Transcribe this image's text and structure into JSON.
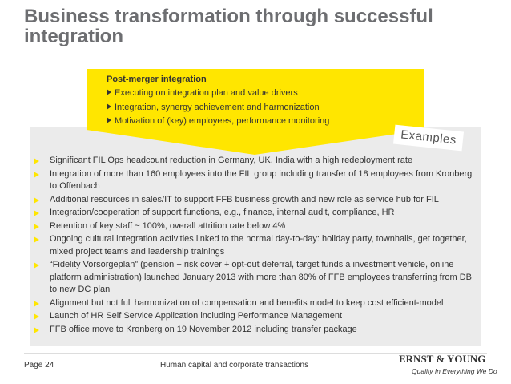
{
  "header": {
    "title": "Business transformation through successful integration"
  },
  "banner": {
    "heading": "Post-merger integration",
    "items": [
      "Executing on integration plan and value drivers",
      "Integration, synergy achievement and harmonization",
      "Motivation of (key) employees, performance monitoring"
    ]
  },
  "tag": "Examples",
  "bullets": [
    "Significant FIL Ops headcount reduction in Germany, UK, India with a high redeployment rate",
    "Integration of more than 160 employees into the FIL group including transfer of 18 employees from Kronberg to Offenbach",
    "Additional resources in sales/IT to support FFB business growth and new role as service hub for FIL",
    "Integration/cooperation of support functions, e.g., finance, internal audit, compliance, HR",
    "Retention of key staff ~ 100%, overall attrition rate below 4%",
    "Ongoing cultural integration activities linked to the normal day-to-day: holiday party, townhalls, get together, mixed project teams and leadership trainings",
    "“Fidelity Vorsorgeplan” (pension + risk cover + opt-out deferral, target funds a investment vehicle, online platform administration) launched January 2013 with more than 80% of FFB employees transferring from DB to new DC plan",
    "Alignment but not full harmonization of compensation and benefits model to keep cost efficient-model",
    "Launch of HR Self Service Application including Performance Management",
    "FFB office move to Kronberg on 19 November 2012 including transfer package"
  ],
  "footer": {
    "page": "Page 24",
    "section": "Human capital and corporate transactions",
    "logo": "ERNST & YOUNG",
    "tagline": "Quality In Everything We Do"
  }
}
